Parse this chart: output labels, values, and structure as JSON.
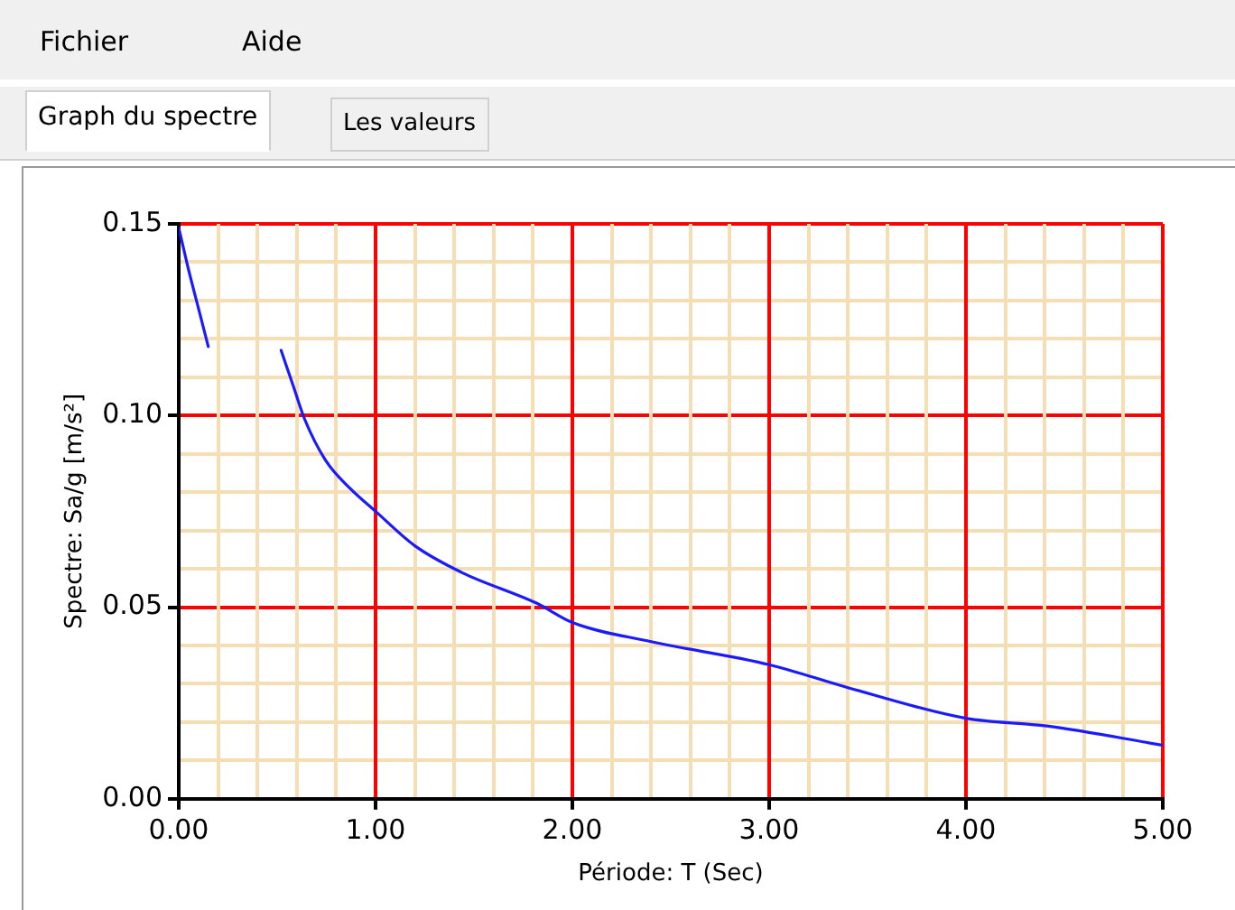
{
  "chart_data": {
    "type": "line",
    "xlabel": "Période: T (Sec)",
    "ylabel": "Spectre: Sa/g [m/s²]",
    "annotations": [
      "Fichier",
      "Aide",
      "Graph du spectre",
      "Les valeurs"
    ],
    "series": [
      {
        "color": "#1a1aff",
        "x": [
          0,
          0.05,
          0.1,
          0.15,
          0.3,
          0.52,
          0.58,
          0.64,
          0.75,
          0.87,
          1.0,
          1.2,
          1.44,
          1.82,
          2.0,
          2.4,
          3.0,
          3.4,
          4.0,
          4.41,
          5.0
        ],
        "values": [
          0.149,
          0.138,
          0.128,
          0.118,
          null,
          0.117,
          0.108,
          0.099,
          0.088,
          0.081,
          0.075,
          0.066,
          0.059,
          0.051,
          0.046,
          0.041,
          0.035,
          0.029,
          0.021,
          0.019,
          0.014
        ]
      }
    ],
    "xlim": [
      0,
      5
    ],
    "xticks": [
      {
        "value": 0,
        "label": "0.00"
      },
      {
        "value": 0.2,
        "label": null
      },
      {
        "value": 0.4,
        "label": null
      },
      {
        "value": 0.6,
        "label": null
      },
      {
        "value": 0.8,
        "label": null
      },
      {
        "value": 1,
        "label": "1.00"
      },
      {
        "value": 1.2,
        "label": null
      },
      {
        "value": 1.4,
        "label": null
      },
      {
        "value": 1.6,
        "label": null
      },
      {
        "value": 1.8,
        "label": null
      },
      {
        "value": 2,
        "label": "2.00"
      },
      {
        "value": 2.2,
        "label": null
      },
      {
        "value": 2.4,
        "label": null
      },
      {
        "value": 2.6,
        "label": null
      },
      {
        "value": 2.8,
        "label": null
      },
      {
        "value": 3,
        "label": "3.00"
      },
      {
        "value": 3.2,
        "label": null
      },
      {
        "value": 3.4,
        "label": null
      },
      {
        "value": 3.6,
        "label": null
      },
      {
        "value": 3.8,
        "label": null
      },
      {
        "value": 4,
        "label": "4.00"
      },
      {
        "value": 4.2,
        "label": null
      },
      {
        "value": 4.4,
        "label": null
      },
      {
        "value": 4.6,
        "label": null
      },
      {
        "value": 4.8,
        "label": null
      },
      {
        "value": 5,
        "label": "5.00"
      }
    ],
    "ylim": [
      0,
      0.15
    ],
    "yticks": [
      {
        "value": 0,
        "label": "0.00"
      },
      {
        "value": 0.01,
        "label": null
      },
      {
        "value": 0.02,
        "label": null
      },
      {
        "value": 0.03,
        "label": null
      },
      {
        "value": 0.04,
        "label": null
      },
      {
        "value": 0.05,
        "label": "0.05"
      },
      {
        "value": 0.06,
        "label": null
      },
      {
        "value": 0.07,
        "label": null
      },
      {
        "value": 0.08,
        "label": null
      },
      {
        "value": 0.09,
        "label": null
      },
      {
        "value": 0.1,
        "label": "0.10"
      },
      {
        "value": 0.11,
        "label": null
      },
      {
        "value": 0.12,
        "label": null
      },
      {
        "value": 0.13,
        "label": null
      },
      {
        "value": 0.14,
        "label": null
      },
      {
        "value": 0.15,
        "label": "0.15"
      }
    ],
    "grid": true,
    "legend": false,
    "marker": "none",
    "line_style": "solid"
  }
}
